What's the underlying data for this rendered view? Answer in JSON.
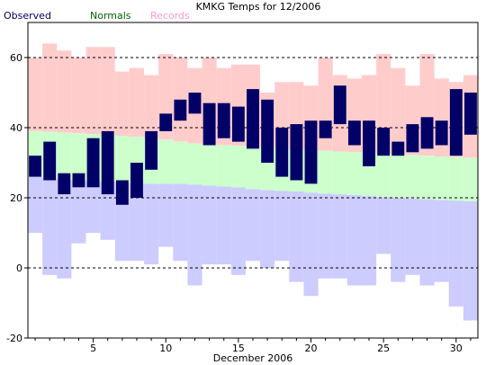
{
  "chart_data": {
    "type": "bar",
    "title": "KMKG Temps for 12/2006",
    "xlabel": "December 2006",
    "ylabel": "",
    "ylim": [
      -20,
      70
    ],
    "xlim": [
      0.5,
      31.5
    ],
    "yticks": [
      -20,
      0,
      20,
      40,
      60
    ],
    "xticks": [
      5,
      10,
      15,
      20,
      25,
      30
    ],
    "grid": "dashed horizontal lines at each y tick",
    "legend": {
      "placement": "top-left",
      "entries": [
        "Observed",
        "Normals",
        "Records"
      ]
    },
    "colors": {
      "observed": "#000066",
      "normals_label": "#006600",
      "normals_fill": "#ccffcc",
      "records_label": "#ff99cc",
      "record_high_fill": "#ffcccc",
      "record_low_fill": "#ccccff",
      "legend_observed_label": "#000066"
    },
    "days": [
      1,
      2,
      3,
      4,
      5,
      6,
      7,
      8,
      9,
      10,
      11,
      12,
      13,
      14,
      15,
      16,
      17,
      18,
      19,
      20,
      21,
      22,
      23,
      24,
      25,
      26,
      27,
      28,
      29,
      30,
      31
    ],
    "series": [
      {
        "name": "Records",
        "key": "record_high",
        "values": [
          60,
          64,
          62,
          60,
          63,
          63,
          56,
          57,
          55,
          61,
          60,
          57,
          60,
          57,
          58,
          58,
          50,
          53,
          53,
          52,
          60,
          55,
          54,
          55,
          61,
          57,
          52,
          61,
          54,
          53,
          55
        ]
      },
      {
        "name": "Records",
        "key": "record_low",
        "values": [
          10,
          -2,
          -3,
          7,
          10,
          8,
          2,
          2,
          1,
          6,
          2,
          -5,
          1,
          1,
          -2,
          2,
          0,
          2,
          -4,
          -8,
          -3,
          -3,
          -5,
          -5,
          4,
          -4,
          -2,
          -5,
          -4,
          -11,
          -15
        ]
      },
      {
        "name": "Normals",
        "key": "normal_high",
        "values": [
          39,
          38.8,
          38.6,
          38.4,
          38.2,
          38,
          37.7,
          37.4,
          37,
          36.6,
          36,
          35.5,
          35.2,
          35,
          34.8,
          34.5,
          34.2,
          34,
          33.8,
          33.6,
          33.4,
          33.2,
          33,
          32.8,
          32.6,
          32.4,
          32.2,
          32,
          31.8,
          31.6,
          31.4
        ]
      },
      {
        "name": "Normals",
        "key": "normal_low",
        "values": [
          26,
          25.5,
          25.2,
          25,
          24.8,
          24.6,
          24.4,
          24.2,
          24,
          24,
          24,
          23.8,
          23.5,
          23.2,
          23,
          22.5,
          22.2,
          22,
          21.8,
          21.5,
          21.2,
          21,
          20.8,
          20.5,
          20.2,
          20,
          19.8,
          19.6,
          19.4,
          19.2,
          19
        ]
      },
      {
        "name": "Observed",
        "key": "observed_high",
        "values": [
          32,
          36,
          27,
          27,
          37,
          39,
          25,
          30,
          39,
          44,
          48,
          50,
          47,
          47,
          46,
          51,
          48,
          40,
          41,
          42,
          42,
          52,
          42,
          42,
          40,
          36,
          41,
          43,
          42,
          51,
          50
        ]
      },
      {
        "name": "Observed",
        "key": "observed_low",
        "values": [
          26,
          25,
          21,
          23,
          23,
          21,
          18,
          20,
          28,
          39,
          42,
          44,
          35,
          37,
          36,
          34,
          30,
          26,
          25,
          24,
          37,
          41,
          35,
          29,
          32,
          32,
          33,
          34,
          35,
          32,
          38
        ]
      }
    ]
  }
}
